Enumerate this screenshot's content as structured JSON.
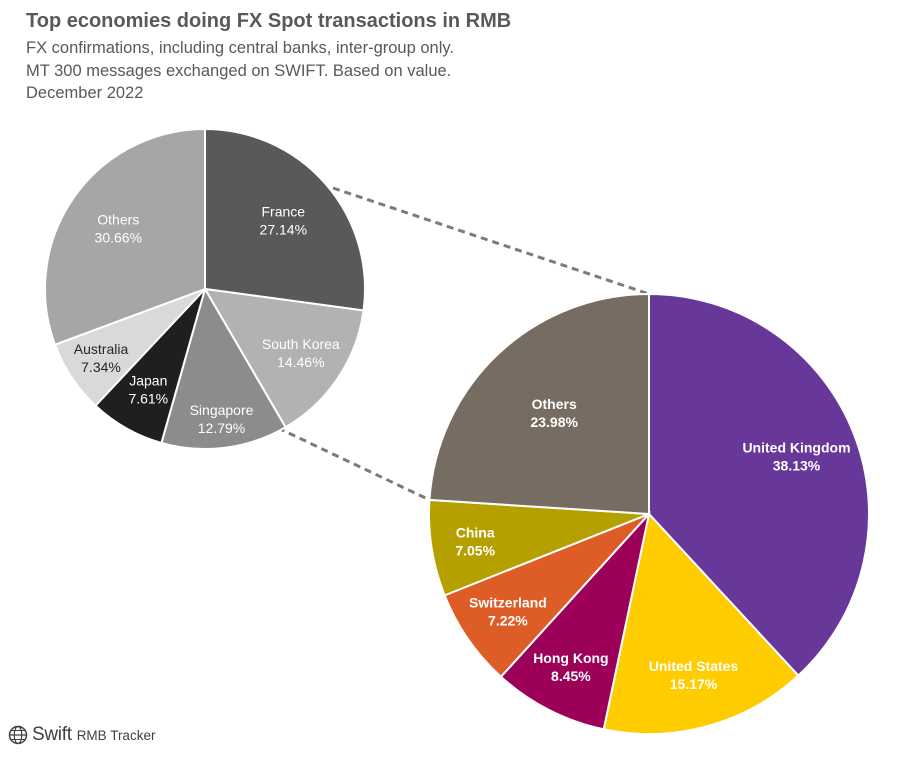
{
  "header": {
    "title": "Top economies doing FX Spot transactions in RMB",
    "subtitle_lines": [
      "FX confirmations, including central banks, inter-group only.",
      "MT 300 messages exchanged on SWIFT. Based on value.",
      "December 2022"
    ]
  },
  "footer": {
    "logo_icon": "globe-icon",
    "brand": "Swift",
    "product": "RMB Tracker"
  },
  "chart_data": [
    {
      "type": "pie",
      "role": "main",
      "slices": [
        {
          "label": "United Kingdom",
          "value": 38.13,
          "display": "38.13%",
          "color": "#67389A"
        },
        {
          "label": "United States",
          "value": 15.17,
          "display": "15.17%",
          "color": "#FFCC00"
        },
        {
          "label": "Hong Kong",
          "value": 8.45,
          "display": "8.45%",
          "color": "#9C0059"
        },
        {
          "label": "Switzerland",
          "value": 7.22,
          "display": "7.22%",
          "color": "#DE5C26"
        },
        {
          "label": "China",
          "value": 7.05,
          "display": "7.05%",
          "color": "#B5A000"
        },
        {
          "label": "Others",
          "value": 23.98,
          "display": "23.98%",
          "color": "#776C61"
        }
      ]
    },
    {
      "type": "pie",
      "role": "breakdown-of-others",
      "slices": [
        {
          "label": "France",
          "value": 27.14,
          "display": "27.14%",
          "color": "#595959"
        },
        {
          "label": "South Korea",
          "value": 14.46,
          "display": "14.46%",
          "color": "#B2B2B2"
        },
        {
          "label": "Singapore",
          "value": 12.79,
          "display": "12.79%",
          "color": "#8C8C8C"
        },
        {
          "label": "Japan",
          "value": 7.61,
          "display": "7.61%",
          "color": "#1F1F1F"
        },
        {
          "label": "Australia",
          "value": 7.34,
          "display": "7.34%",
          "color": "#D9D9D9"
        },
        {
          "label": "Others",
          "value": 30.66,
          "display": "30.66%",
          "color": "#A6A6A6"
        }
      ]
    }
  ]
}
